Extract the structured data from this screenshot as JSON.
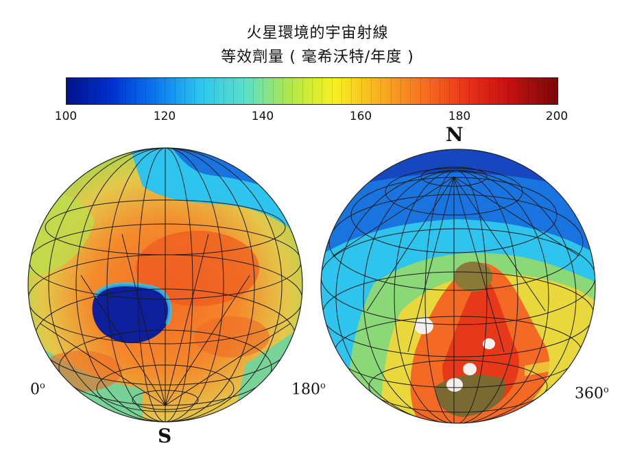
{
  "title_line1": "火星環境的宇宙射線",
  "title_line2": "等效劑量 ( 毫希沃特/年度 )",
  "colorbar": {
    "ticks": [
      "100",
      "120",
      "140",
      "160",
      "180",
      "200"
    ],
    "stops": [
      "#00138a",
      "#0030d0",
      "#0a78f0",
      "#2cc6f0",
      "#5ae0c8",
      "#b0e848",
      "#f8f020",
      "#f8b020",
      "#f87020",
      "#e83018",
      "#c01010",
      "#7a0808"
    ]
  },
  "globes": [
    {
      "name": "south-hemisphere",
      "pole_label": "S",
      "lon_left": "0",
      "lon_right": "180",
      "degree_symbol": "o"
    },
    {
      "name": "north-hemisphere",
      "pole_label": "N",
      "lon_right": "360",
      "degree_symbol": "o"
    }
  ]
}
